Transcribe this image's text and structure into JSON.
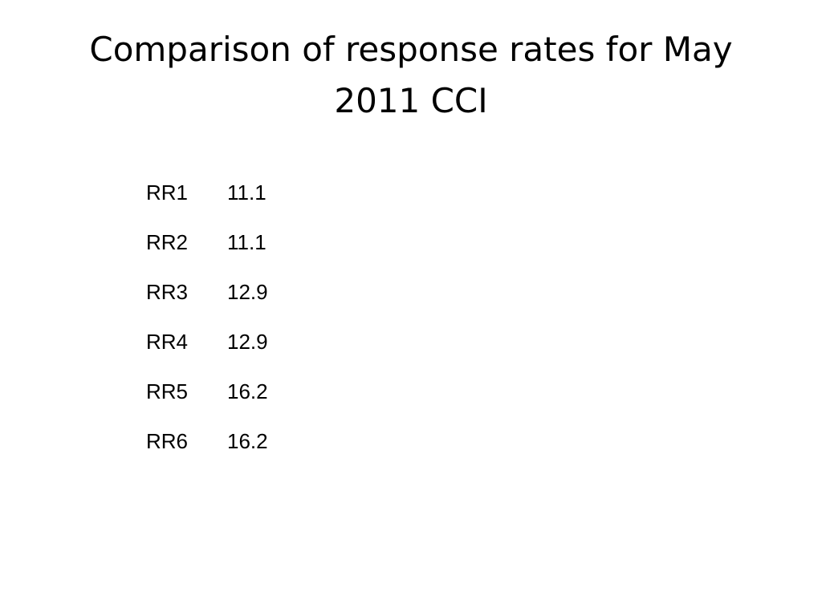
{
  "title": "Comparison of response rates for May 2011 CCI",
  "table": {
    "rows": [
      [
        "RR1",
        11.1
      ],
      [
        "RR2",
        11.1
      ],
      [
        "RR3",
        12.9
      ],
      [
        "RR4",
        12.9
      ],
      [
        "RR5",
        16.2
      ],
      [
        "RR6",
        16.2
      ]
    ]
  }
}
